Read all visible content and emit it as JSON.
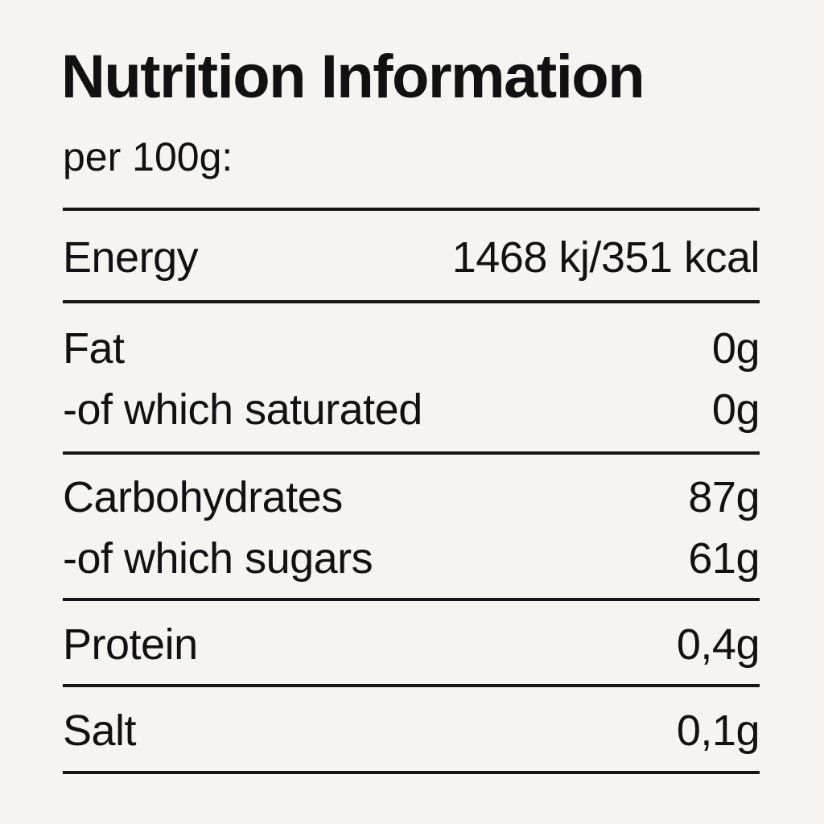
{
  "header": {
    "title": "Nutrition Information",
    "subtitle": "per 100g:"
  },
  "table": {
    "sections": [
      {
        "rows": [
          {
            "label": "Energy",
            "value": "1468 kj/351 kcal"
          }
        ]
      },
      {
        "rows": [
          {
            "label": "Fat",
            "value": "0g"
          },
          {
            "label": "-of which saturated",
            "value": "0g"
          }
        ]
      },
      {
        "rows": [
          {
            "label": "Carbohydrates",
            "value": "87g"
          },
          {
            "label": "-of which sugars",
            "value": "61g"
          }
        ]
      },
      {
        "rows": [
          {
            "label": "Protein",
            "value": "0,4g"
          }
        ]
      },
      {
        "rows": [
          {
            "label": "Salt",
            "value": "0,1g"
          }
        ]
      }
    ]
  }
}
